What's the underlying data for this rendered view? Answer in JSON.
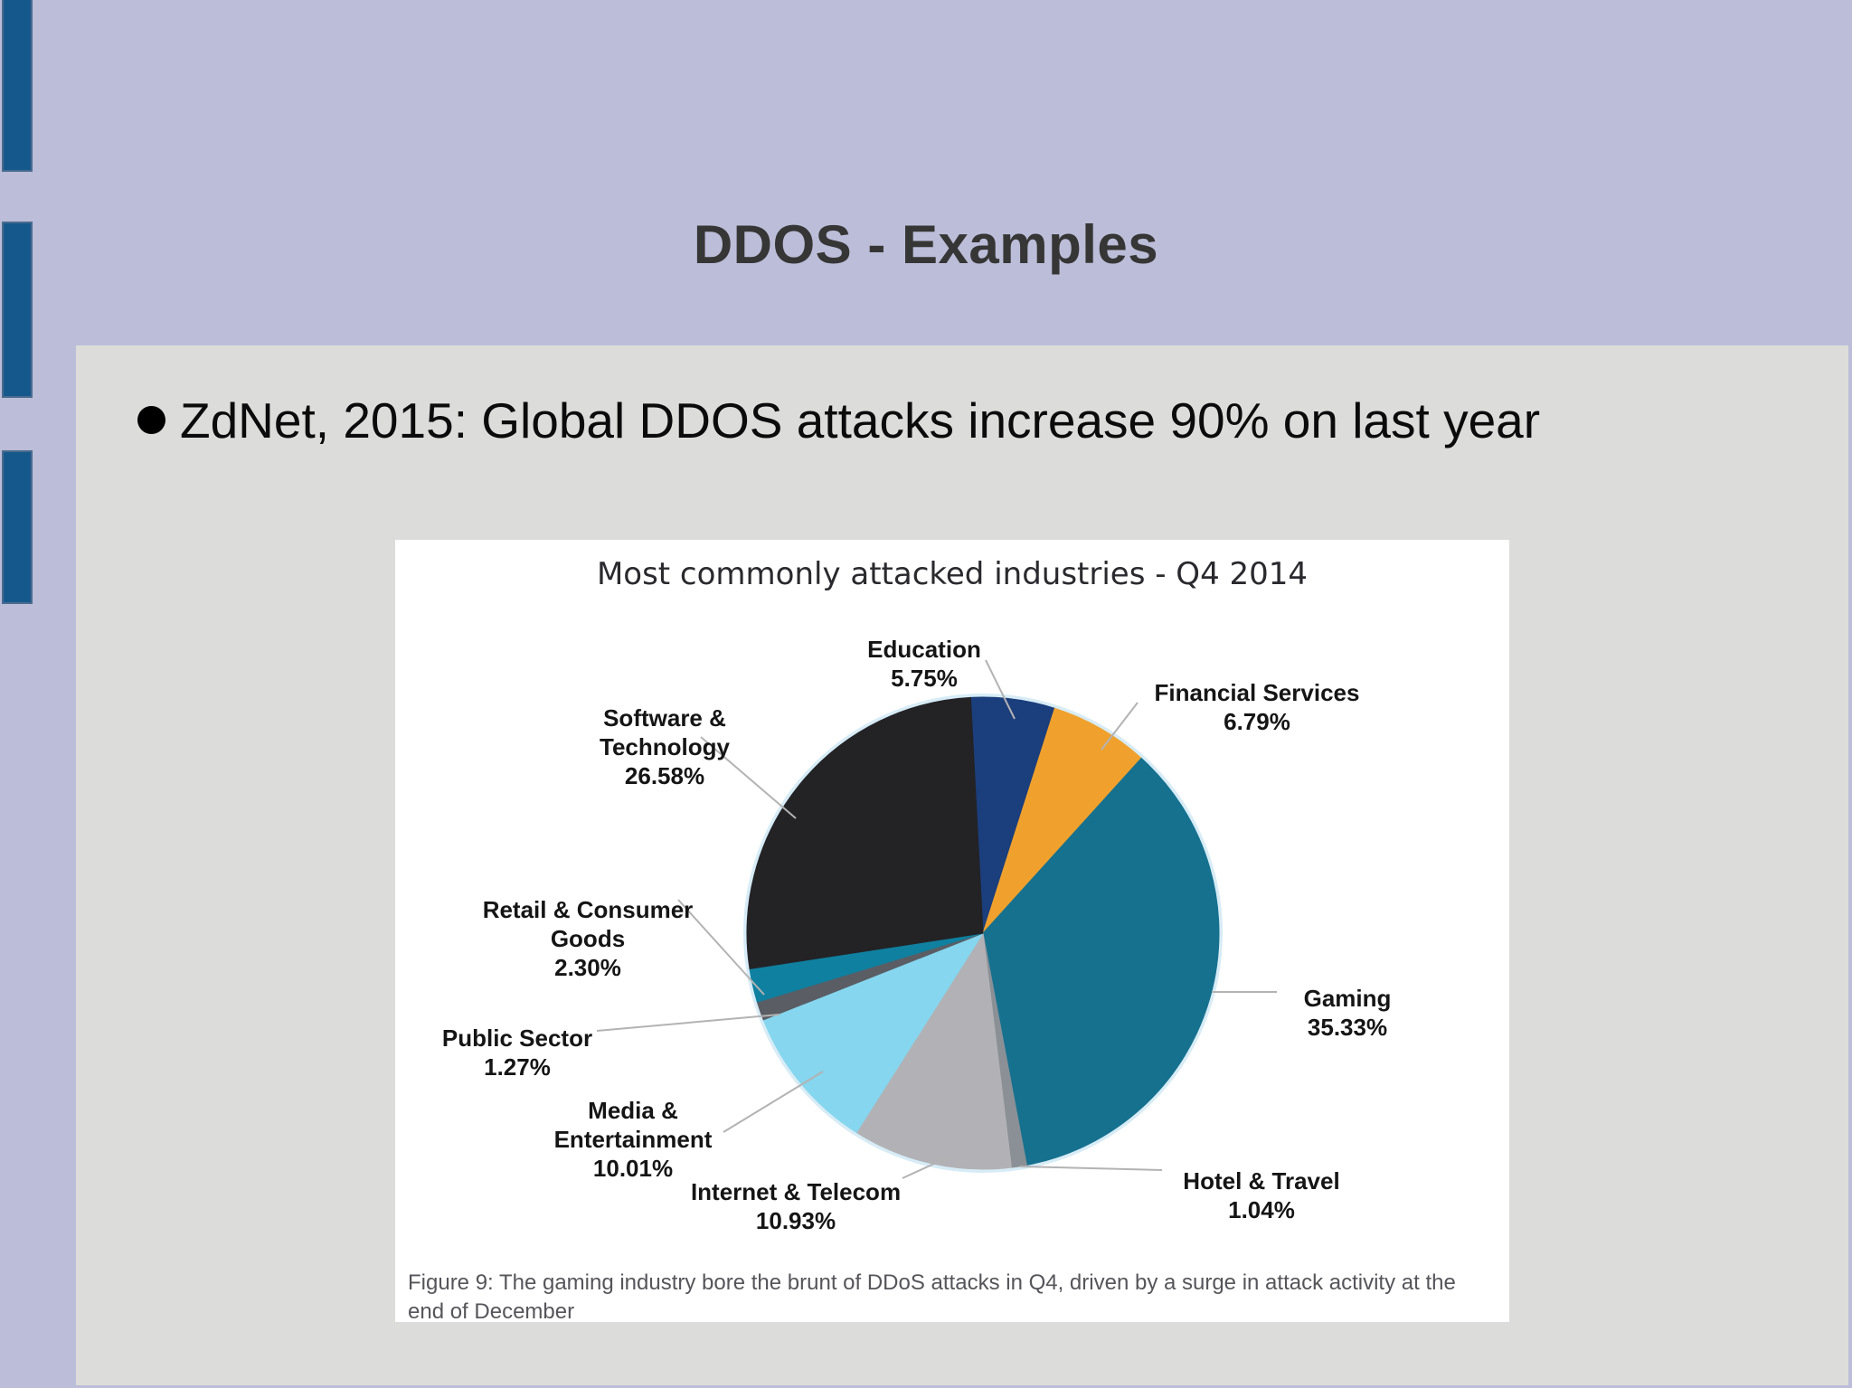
{
  "slide": {
    "title": "DDOS - Examples",
    "bullet_text": "ZdNet, 2015: Global DDOS attacks increase 90% on last year"
  },
  "figure": {
    "caption": "Figure 9: The gaming industry bore the brunt of DDoS attacks in Q4, driven by a surge in attack activity at the end of December"
  },
  "chart_data": {
    "type": "pie",
    "title": "Most commonly attacked industries - Q4 2014",
    "start_angle_deg": -3,
    "direction": "clockwise",
    "slices": [
      {
        "label": "Education",
        "value": 5.75,
        "pct_label": "5.75%",
        "color": "#1b3e7c"
      },
      {
        "label": "Financial Services",
        "value": 6.79,
        "pct_label": "6.79%",
        "color": "#f0a12d"
      },
      {
        "label": "Gaming",
        "value": 35.33,
        "pct_label": "35.33%",
        "color": "#16718f"
      },
      {
        "label": "Hotel & Travel",
        "value": 1.04,
        "pct_label": "1.04%",
        "color": "#8a9096"
      },
      {
        "label": "Internet & Telecom",
        "value": 10.93,
        "pct_label": "10.93%",
        "color": "#b2b2b6"
      },
      {
        "label": "Media & Entertainment",
        "value": 10.01,
        "pct_label": "10.01%",
        "color": "#85d6ee"
      },
      {
        "label": "Public Sector",
        "value": 1.27,
        "pct_label": "1.27%",
        "color": "#5a5d64"
      },
      {
        "label": "Retail & Consumer Goods",
        "value": 2.3,
        "pct_label": "2.30%",
        "color": "#0f80a0"
      },
      {
        "label": "Software & Technology",
        "value": 26.58,
        "pct_label": "26.58%",
        "color": "#232326"
      }
    ]
  },
  "theme": {
    "background": "#bcbdd8",
    "panel": "#dcdcda",
    "accent_bar": "#15598c",
    "figure_bg": "#ffffff",
    "leader_line": "#b3b3b3",
    "title_color": "#363636"
  }
}
